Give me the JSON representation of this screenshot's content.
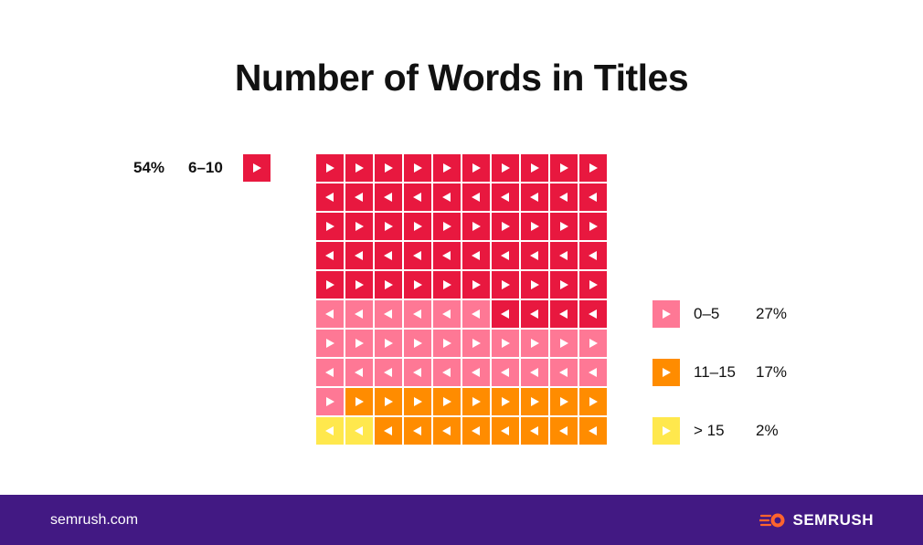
{
  "title": "Number of Words in Titles",
  "footer": {
    "site": "semrush.com",
    "brand": "SEMRUSH",
    "brand_icon": "semrush-logo-icon"
  },
  "colors": {
    "6-10": "#E8183F",
    "0-5": "#FE7895",
    "11-15": "#FF8C00",
    ">15": "#FFE84D",
    "footer_bg": "#421983"
  },
  "legend_left": {
    "pct": "54%",
    "range": "6–10"
  },
  "legend_right": [
    {
      "range": "0–5",
      "pct": "27%"
    },
    {
      "range": "11–15",
      "pct": "17%"
    },
    {
      "range": "> 15",
      "pct": "2%"
    }
  ],
  "chart_data": {
    "type": "waffle",
    "title": "Number of Words in Titles",
    "grid": {
      "rows": 10,
      "cols": 10,
      "order": "serpentine"
    },
    "categories": [
      "6–10",
      "0–5",
      "11–15",
      "> 15"
    ],
    "values": [
      54,
      27,
      17,
      2
    ],
    "unit": "%"
  }
}
